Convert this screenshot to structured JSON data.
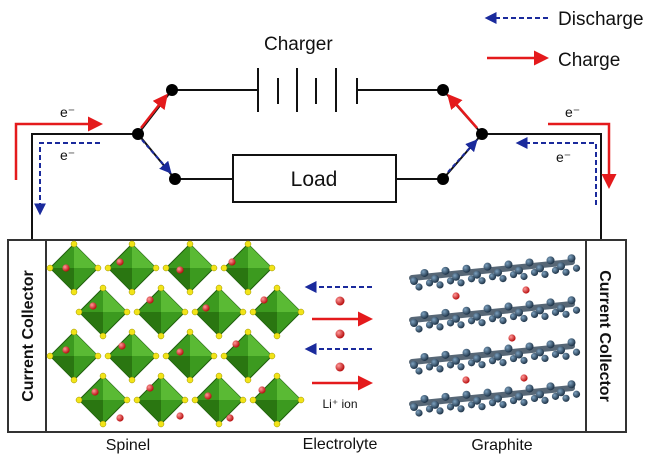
{
  "legend": {
    "discharge": "Discharge",
    "charge": "Charge"
  },
  "circuit": {
    "charger_label": "Charger",
    "load_label": "Load",
    "electron_label": "e⁻"
  },
  "cell": {
    "left_collector": "Current Collector",
    "right_collector": "Current Collector",
    "ion_label": "Li⁺ ion"
  },
  "captions": {
    "left": "Spinel",
    "middle": "Electrolyte",
    "right": "Graphite"
  },
  "colors": {
    "charge_arrow": "#e41a1c",
    "discharge_arrow": "#1a2a9c",
    "spinel_green": "#3c9a1f",
    "graphite_blue": "#2f4c66",
    "ion_red": "#d42020"
  }
}
